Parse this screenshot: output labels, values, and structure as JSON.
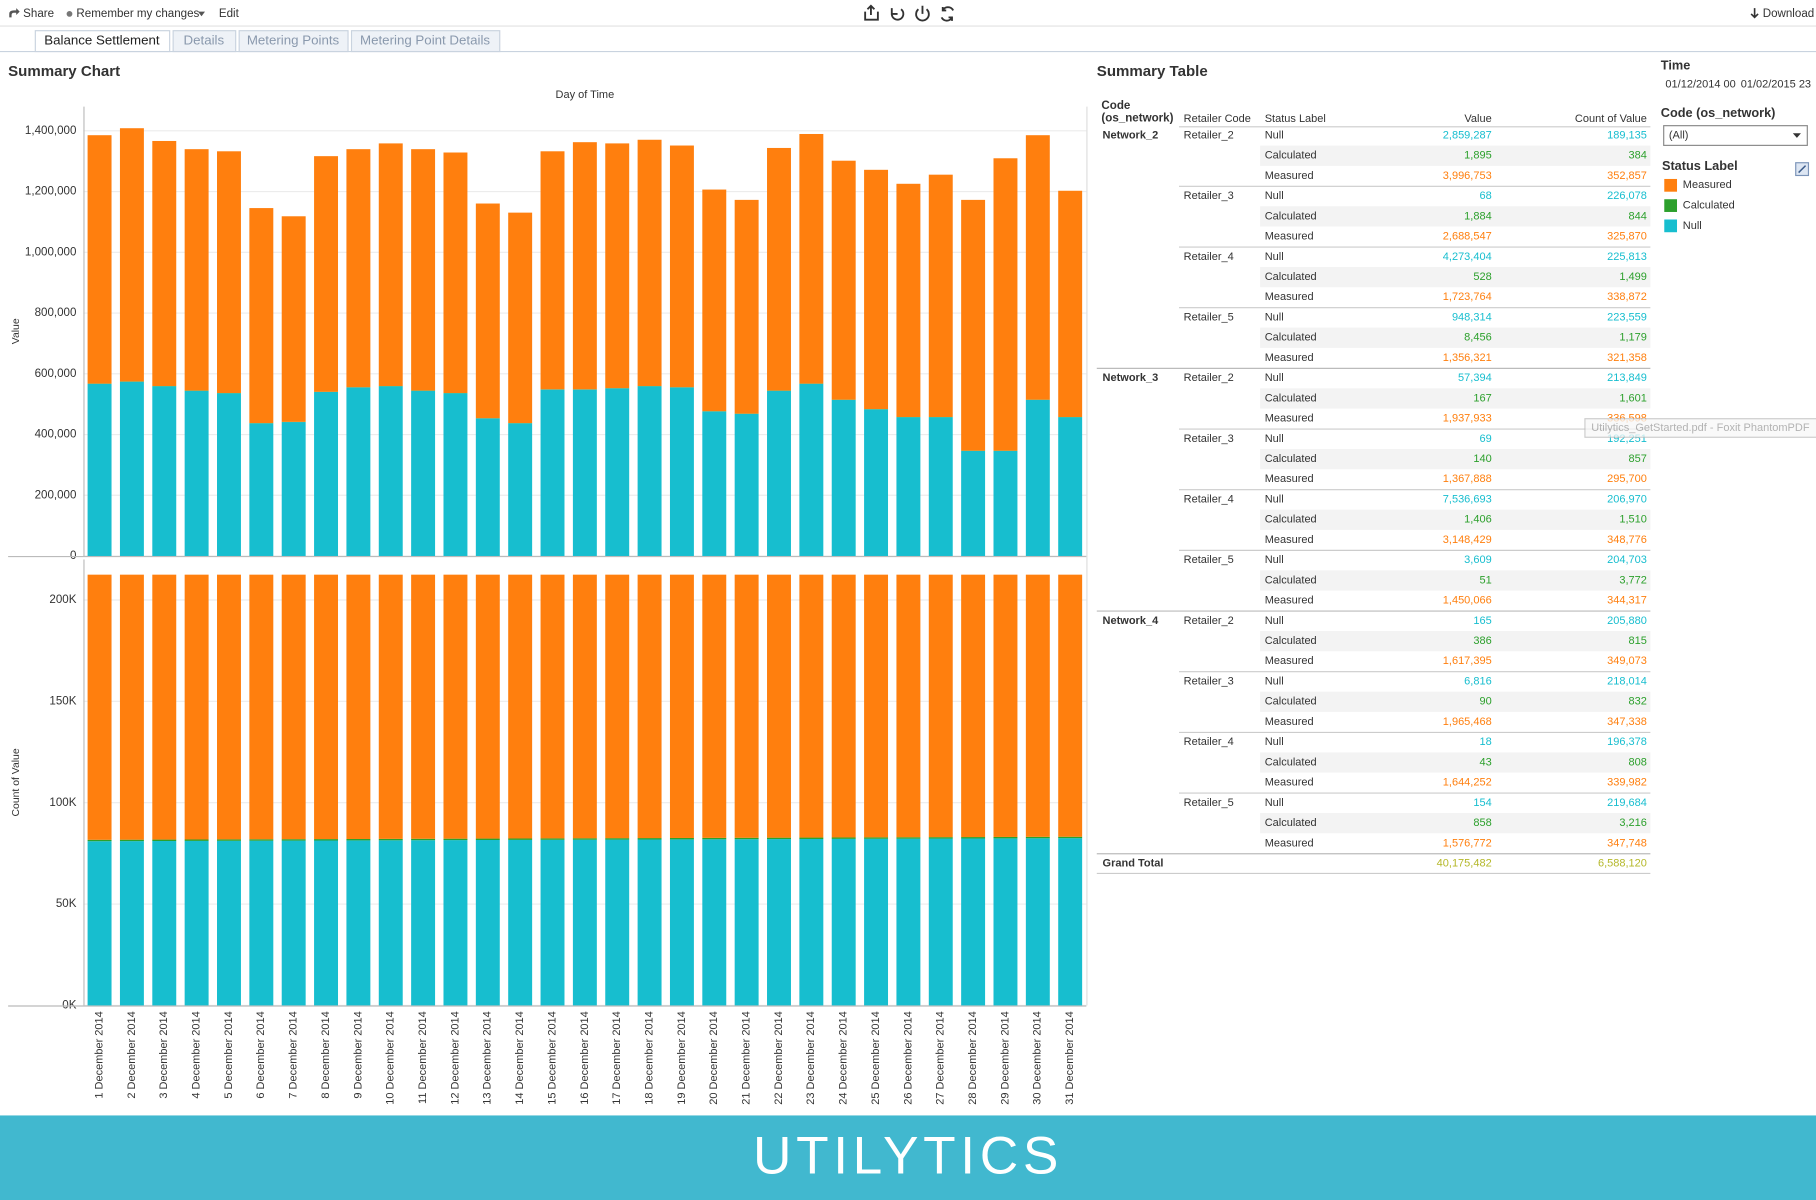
{
  "toolbar": {
    "share": "Share",
    "remember": "Remember my changes",
    "edit": "Edit",
    "download": "Download"
  },
  "tabs": [
    "Balance Settlement",
    "Details",
    "Metering Points",
    "Metering Point Details"
  ],
  "sections": {
    "chart_title": "Summary Chart",
    "table_title": "Summary Table"
  },
  "chart_data": [
    {
      "type": "bar",
      "stacked": true,
      "x_label": "Day of Time",
      "y_label": "Value",
      "categories": [
        "1 December 2014",
        "2 December 2014",
        "3 December 2014",
        "4 December 2014",
        "5 December 2014",
        "6 December 2014",
        "7 December 2014",
        "8 December 2014",
        "9 December 2014",
        "10 December 2014",
        "11 December 2014",
        "12 December 2014",
        "13 December 2014",
        "14 December 2014",
        "15 December 2014",
        "16 December 2014",
        "17 December 2014",
        "18 December 2014",
        "19 December 2014",
        "20 December 2014",
        "21 December 2014",
        "22 December 2014",
        "23 December 2014",
        "24 December 2014",
        "25 December 2014",
        "26 December 2014",
        "27 December 2014",
        "28 December 2014",
        "29 December 2014",
        "30 December 2014",
        "31 December 2014"
      ],
      "series": [
        {
          "name": "Null",
          "color": "#17becf",
          "values": [
            567000,
            574000,
            559000,
            544000,
            536000,
            437000,
            441000,
            540000,
            555000,
            559000,
            544000,
            536000,
            453000,
            437000,
            548000,
            548000,
            552000,
            559000,
            555000,
            476000,
            468000,
            544000,
            567000,
            514000,
            483000,
            457000,
            457000,
            346000,
            346000,
            514000,
            457000
          ]
        },
        {
          "name": "Calculated",
          "color": "#2ca02c",
          "values": [
            700,
            700,
            700,
            700,
            700,
            700,
            700,
            700,
            700,
            700,
            700,
            700,
            700,
            700,
            700,
            700,
            700,
            700,
            700,
            700,
            700,
            700,
            700,
            700,
            700,
            700,
            700,
            700,
            700,
            700,
            700
          ]
        },
        {
          "name": "Measured",
          "color": "#ff7f0e",
          "values": [
            818000,
            834000,
            807000,
            795000,
            796000,
            708000,
            677000,
            776000,
            784000,
            799000,
            795000,
            792000,
            707000,
            693000,
            784000,
            814000,
            806000,
            811000,
            796000,
            730000,
            704000,
            799000,
            822000,
            787000,
            788000,
            768000,
            798000,
            826000,
            963000,
            871000,
            745000
          ]
        }
      ],
      "ylim": [
        0,
        1480000
      ],
      "yticks": [
        0,
        {
          "value": 200000,
          "label": "200,000"
        },
        {
          "value": 400000,
          "label": "400,000"
        },
        {
          "value": 600000,
          "label": "600,000"
        },
        {
          "value": 800000,
          "label": "800,000"
        },
        {
          "value": 1000000,
          "label": "1,000,000"
        },
        {
          "value": 1200000,
          "label": "1,200,000"
        },
        {
          "value": 1400000,
          "label": "1,400,000"
        }
      ],
      "grid": true
    },
    {
      "type": "bar",
      "stacked": true,
      "y_label": "Count of Value",
      "series": [
        {
          "color": "#17becf",
          "values": [
            81000,
            81050,
            81100,
            81150,
            81200,
            81250,
            81300,
            81350,
            81400,
            81450,
            81500,
            81550,
            81600,
            81650,
            81700,
            81750,
            81800,
            81850,
            81900,
            81950,
            82000,
            82050,
            82100,
            82150,
            82200,
            82250,
            82300,
            82350,
            82400,
            82450,
            82500
          ]
        },
        {
          "color": "#2ca02c",
          "values": [
            700,
            700,
            700,
            700,
            700,
            700,
            700,
            700,
            700,
            700,
            700,
            700,
            700,
            700,
            700,
            700,
            700,
            700,
            700,
            700,
            700,
            700,
            700,
            700,
            700,
            700,
            700,
            700,
            700,
            700,
            700
          ]
        },
        {
          "color": "#ff7f0e",
          "values": [
            130800,
            130750,
            130700,
            130650,
            130600,
            130550,
            130500,
            130450,
            130400,
            130350,
            130300,
            130250,
            130200,
            130150,
            130100,
            130050,
            130000,
            129950,
            129900,
            129850,
            129800,
            129750,
            129700,
            129650,
            129600,
            129550,
            129500,
            129450,
            129400,
            129350,
            129300
          ]
        }
      ],
      "ylim": [
        0,
        220000
      ],
      "yticks": [
        {
          "value": 0,
          "label": "0K"
        },
        {
          "value": 50000,
          "label": "50K"
        },
        {
          "value": 100000,
          "label": "100K"
        },
        {
          "value": 150000,
          "label": "150K"
        },
        {
          "value": 200000,
          "label": "200K"
        }
      ],
      "grid": true
    }
  ],
  "table": {
    "headers": [
      "Code (os_network)",
      "Retailer Code",
      "Status Label",
      "Value",
      "Count of Value"
    ],
    "groups": [
      {
        "code": "Network_2",
        "retailers": [
          {
            "name": "Retailer_2",
            "rows": [
              [
                "Null",
                "2,859,287",
                "189,135"
              ],
              [
                "Calculated",
                "1,895",
                "384"
              ],
              [
                "Measured",
                "3,996,753",
                "352,857"
              ]
            ]
          },
          {
            "name": "Retailer_3",
            "rows": [
              [
                "Null",
                "68",
                "226,078"
              ],
              [
                "Calculated",
                "1,884",
                "844"
              ],
              [
                "Measured",
                "2,688,547",
                "325,870"
              ]
            ]
          },
          {
            "name": "Retailer_4",
            "rows": [
              [
                "Null",
                "4,273,404",
                "225,813"
              ],
              [
                "Calculated",
                "528",
                "1,499"
              ],
              [
                "Measured",
                "1,723,764",
                "338,872"
              ]
            ]
          },
          {
            "name": "Retailer_5",
            "rows": [
              [
                "Null",
                "948,314",
                "223,559"
              ],
              [
                "Calculated",
                "8,456",
                "1,179"
              ],
              [
                "Measured",
                "1,356,321",
                "321,358"
              ]
            ]
          }
        ]
      },
      {
        "code": "Network_3",
        "retailers": [
          {
            "name": "Retailer_2",
            "rows": [
              [
                "Null",
                "57,394",
                "213,849"
              ],
              [
                "Calculated",
                "167",
                "1,601"
              ],
              [
                "Measured",
                "1,937,933",
                "336,598"
              ]
            ]
          },
          {
            "name": "Retailer_3",
            "rows": [
              [
                "Null",
                "69",
                "192,251"
              ],
              [
                "Calculated",
                "140",
                "857"
              ],
              [
                "Measured",
                "1,367,888",
                "295,700"
              ]
            ]
          },
          {
            "name": "Retailer_4",
            "rows": [
              [
                "Null",
                "7,536,693",
                "206,970"
              ],
              [
                "Calculated",
                "1,406",
                "1,510"
              ],
              [
                "Measured",
                "3,148,429",
                "348,776"
              ]
            ]
          },
          {
            "name": "Retailer_5",
            "rows": [
              [
                "Null",
                "3,609",
                "204,703"
              ],
              [
                "Calculated",
                "51",
                "3,772"
              ],
              [
                "Measured",
                "1,450,066",
                "344,317"
              ]
            ]
          }
        ]
      },
      {
        "code": "Network_4",
        "retailers": [
          {
            "name": "Retailer_2",
            "rows": [
              [
                "Null",
                "165",
                "205,880"
              ],
              [
                "Calculated",
                "386",
                "815"
              ],
              [
                "Measured",
                "1,617,395",
                "349,073"
              ]
            ]
          },
          {
            "name": "Retailer_3",
            "rows": [
              [
                "Null",
                "6,816",
                "218,014"
              ],
              [
                "Calculated",
                "90",
                "832"
              ],
              [
                "Measured",
                "1,965,468",
                "347,338"
              ]
            ]
          },
          {
            "name": "Retailer_4",
            "rows": [
              [
                "Null",
                "18",
                "196,378"
              ],
              [
                "Calculated",
                "43",
                "808"
              ],
              [
                "Measured",
                "1,644,252",
                "339,982"
              ]
            ]
          },
          {
            "name": "Retailer_5",
            "rows": [
              [
                "Null",
                "154",
                "219,684"
              ],
              [
                "Calculated",
                "858",
                "3,216"
              ],
              [
                "Measured",
                "1,576,772",
                "347,748"
              ]
            ]
          }
        ]
      }
    ],
    "total": {
      "label": "Grand Total",
      "value": "40,175,482",
      "count": "6,588,120",
      "color": "#b5b82a"
    }
  },
  "filters": {
    "time_label": "Time",
    "time_from": "01/12/2014 00",
    "time_to": "01/02/2015 23",
    "code_label": "Code (os_network)",
    "code_value": "(All)",
    "legend_title": "Status Label"
  },
  "tooltip": "Utilytics_GetStarted.pdf - Foxit PhantomPDF",
  "footer": {
    "text": "UTILYTICS",
    "color": "#41b8cf"
  }
}
